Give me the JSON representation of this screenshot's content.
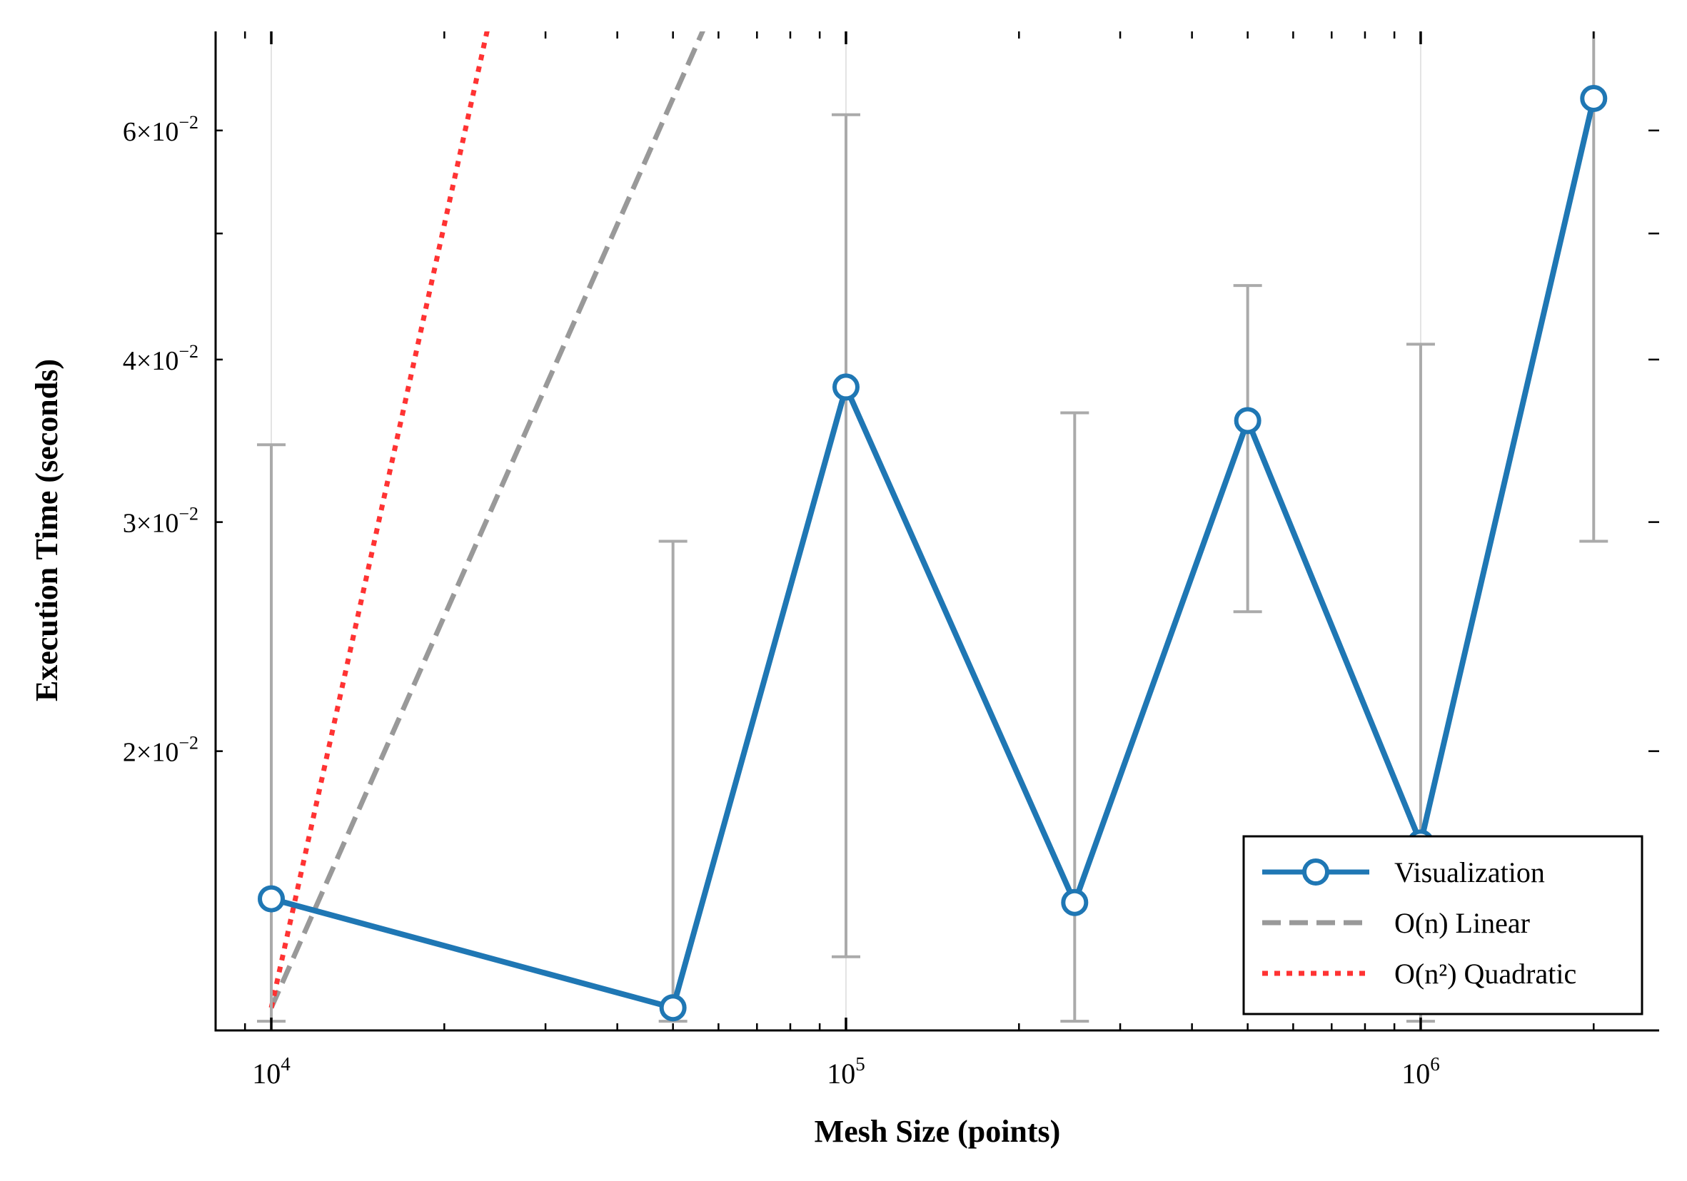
{
  "chart_data": {
    "type": "line",
    "xlabel": "Mesh Size (points)",
    "ylabel": "Execution Time (seconds)",
    "xscale": "log",
    "yscale": "log",
    "xlim": [
      8000,
      2600000
    ],
    "ylim": [
      0.0122,
      0.0715
    ],
    "x_ticks": [
      {
        "value": 10000,
        "base": "10",
        "exp": "4"
      },
      {
        "value": 100000,
        "base": "10",
        "exp": "5"
      },
      {
        "value": 1000000,
        "base": "10",
        "exp": "6"
      }
    ],
    "y_ticks": [
      {
        "value": 0.02,
        "mant": "2",
        "exp": "−2"
      },
      {
        "value": 0.03,
        "mant": "3",
        "exp": "−2"
      },
      {
        "value": 0.04,
        "mant": "4",
        "exp": "−2"
      },
      {
        "value": 0.06,
        "mant": "6",
        "exp": "−2"
      }
    ],
    "y_minor_ticks": [
      0.05
    ],
    "series": [
      {
        "name": "Visualization",
        "color": "#1f77b4",
        "style": "solid",
        "marker": "open-circle",
        "x": [
          10000,
          50000,
          100000,
          250000,
          500000,
          1000000,
          2000000
        ],
        "y": [
          0.0154,
          0.0127,
          0.0381,
          0.0153,
          0.0359,
          0.017,
          0.0635
        ],
        "yerr_low": [
          0.0124,
          0.0124,
          0.0139,
          0.0124,
          0.0256,
          0.0124,
          0.029
        ],
        "yerr_high": [
          0.0344,
          0.029,
          0.0617,
          0.0364,
          0.0456,
          0.0411,
          0.0715
        ]
      },
      {
        "name": "O(n) Linear",
        "color": "#999999",
        "style": "dashed",
        "x": [
          10000,
          60000
        ],
        "y": [
          0.0127,
          0.0762
        ]
      },
      {
        "name": "O(n²) Quadratic",
        "color": "#ff3333",
        "style": "dotted",
        "x": [
          10000,
          24000
        ],
        "y": [
          0.0127,
          0.0731
        ]
      }
    ],
    "errorbar_color": "#aaaaaa",
    "grid": "vertical major x only",
    "legend_position": "lower right"
  }
}
